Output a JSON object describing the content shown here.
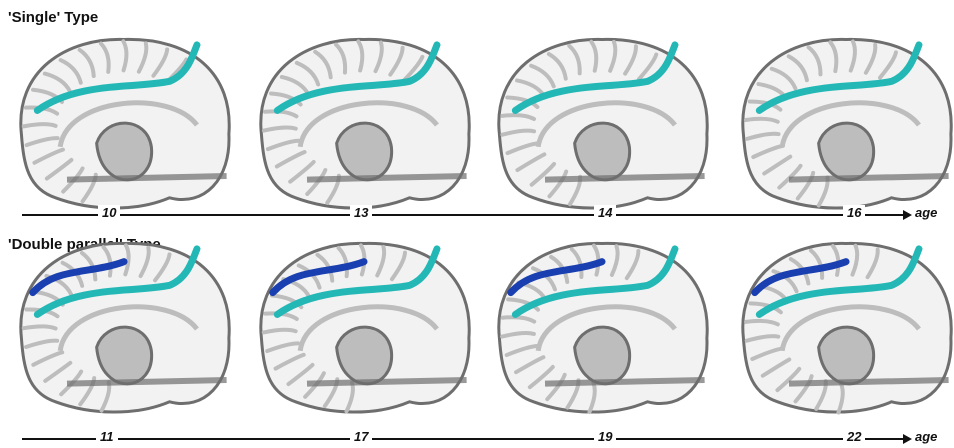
{
  "panels": [
    {
      "title": "'Single' Type",
      "sulcus_colors": [
        "#23b8b6"
      ],
      "ages": [
        "10",
        "13",
        "14",
        "16"
      ],
      "axis_label": "age"
    },
    {
      "title": "'Double parallel' Type",
      "sulcus_colors": [
        "#23b8b6",
        "#1a3fb0"
      ],
      "ages": [
        "11",
        "17",
        "19",
        "22"
      ],
      "axis_label": "age"
    }
  ],
  "colors": {
    "cortex_light": "#f2f2f2",
    "cortex_mid": "#bdbdbd",
    "cortex_dark": "#6e6e6e",
    "teal_sulcus": "#23b8b6",
    "blue_sulcus": "#1a3fb0"
  }
}
